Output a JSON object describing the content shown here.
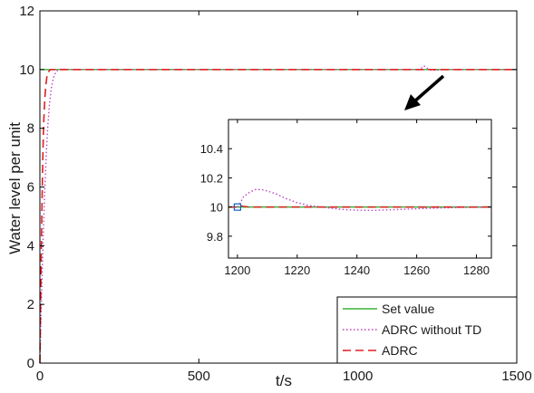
{
  "chart_data": [
    {
      "type": "line",
      "title": "",
      "xlabel": "t/s",
      "ylabel": "Water level per unit",
      "xlim": [
        0,
        1500
      ],
      "ylim": [
        0,
        12
      ],
      "xticks": [
        "0",
        "500",
        "1000",
        "1500"
      ],
      "yticks": [
        "0",
        "2",
        "4",
        "6",
        "8",
        "10",
        "12"
      ],
      "grid": false,
      "legend_position": "bottom-right",
      "series": [
        {
          "name": "Set value",
          "color": "#3cb43c",
          "style": "solid",
          "points": [
            [
              0,
              10
            ],
            [
              1500,
              10
            ]
          ]
        },
        {
          "name": "ADRC without TD",
          "color": "#c040c0",
          "style": "dotted",
          "points": [
            [
              0,
              0
            ],
            [
              5,
              2.2
            ],
            [
              10,
              4.2
            ],
            [
              15,
              5.8
            ],
            [
              20,
              7.1
            ],
            [
              25,
              8.1
            ],
            [
              30,
              8.8
            ],
            [
              35,
              9.3
            ],
            [
              40,
              9.6
            ],
            [
              45,
              9.8
            ],
            [
              50,
              9.9
            ],
            [
              55,
              9.97
            ],
            [
              60,
              10.0
            ],
            [
              70,
              10.02
            ],
            [
              80,
              10.01
            ],
            [
              100,
              10.0
            ],
            [
              1200,
              10.0
            ],
            [
              1201,
              10.07
            ],
            [
              1206,
              10.12
            ],
            [
              1210,
              10.11
            ],
            [
              1215,
              10.07
            ],
            [
              1220,
              10.03
            ],
            [
              1225,
              10.0
            ],
            [
              1230,
              9.99
            ],
            [
              1240,
              9.98
            ],
            [
              1250,
              9.985
            ],
            [
              1260,
              9.99
            ],
            [
              1270,
              9.995
            ],
            [
              1285,
              10.0
            ],
            [
              1500,
              10.0
            ]
          ]
        },
        {
          "name": "ADRC",
          "color": "#e02020",
          "style": "dashed",
          "points": [
            [
              0,
              0
            ],
            [
              2,
              1.8
            ],
            [
              4,
              3.5
            ],
            [
              6,
              5.0
            ],
            [
              8,
              6.3
            ],
            [
              10,
              7.4
            ],
            [
              12,
              8.2
            ],
            [
              15,
              8.9
            ],
            [
              18,
              9.4
            ],
            [
              22,
              9.75
            ],
            [
              26,
              9.9
            ],
            [
              30,
              9.97
            ],
            [
              35,
              10.0
            ],
            [
              1500,
              10.0
            ]
          ]
        }
      ]
    },
    {
      "type": "line",
      "title": "",
      "xlabel": "",
      "ylabel": "",
      "xlim": [
        1197,
        1285
      ],
      "ylim": [
        9.65,
        10.6
      ],
      "xticks": [
        "1200",
        "1220",
        "1240",
        "1260",
        "1280"
      ],
      "yticks": [
        "9.8",
        "10",
        "10.2",
        "10.4"
      ],
      "grid": false,
      "series": [
        {
          "name": "Set value",
          "color": "#3cb43c",
          "style": "solid",
          "points": [
            [
              1197,
              10
            ],
            [
              1285,
              10
            ]
          ]
        },
        {
          "name": "ADRC without TD",
          "color": "#c040c0",
          "style": "dotted",
          "points": [
            [
              1200,
              10.0
            ],
            [
              1201,
              10.03
            ],
            [
              1202,
              10.07
            ],
            [
              1204,
              10.1
            ],
            [
              1206,
              10.12
            ],
            [
              1208,
              10.12
            ],
            [
              1210,
              10.11
            ],
            [
              1213,
              10.09
            ],
            [
              1216,
              10.06
            ],
            [
              1220,
              10.03
            ],
            [
              1224,
              10.01
            ],
            [
              1228,
              10.0
            ],
            [
              1232,
              9.99
            ],
            [
              1236,
              9.982
            ],
            [
              1240,
              9.978
            ],
            [
              1245,
              9.977
            ],
            [
              1250,
              9.98
            ],
            [
              1255,
              9.984
            ],
            [
              1260,
              9.988
            ],
            [
              1265,
              9.992
            ],
            [
              1270,
              9.995
            ],
            [
              1275,
              9.997
            ],
            [
              1285,
              9.999
            ]
          ]
        },
        {
          "name": "ADRC",
          "color": "#e02020",
          "style": "dashed",
          "points": [
            [
              1197,
              10.0
            ],
            [
              1200,
              10.0
            ],
            [
              1201,
              10.01
            ],
            [
              1202,
              10.005
            ],
            [
              1204,
              10.0
            ],
            [
              1285,
              10.0
            ]
          ]
        }
      ]
    }
  ]
}
